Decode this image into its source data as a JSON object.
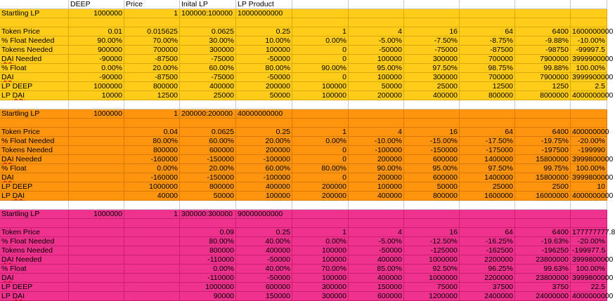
{
  "header": [
    "",
    "DEEP",
    "Price",
    "Inital LP",
    "LP Product",
    "",
    "",
    "",
    "",
    "",
    ""
  ],
  "sections": [
    {
      "color": "#ffcc1a",
      "startling": {
        "label": "Startling LP",
        "deep": "1000000",
        "price": "1",
        "initial_lp": "100000:100000",
        "lp_product": "10000000000"
      },
      "rows": [
        {
          "label": "Token Price",
          "values": [
            "0.01",
            "0.015625",
            "0.0625",
            "0.25",
            "1",
            "4",
            "16",
            "64",
            "6400",
            "1600000000"
          ]
        },
        {
          "label": "% Float Needed",
          "values": [
            "90.00%",
            "70.00%",
            "30.00%",
            "10.00%",
            "0.00%",
            "-5.00%",
            "-7.50%",
            "-8.75%",
            "-9.88%",
            "-10.00%"
          ]
        },
        {
          "label": "Tokens Needed",
          "values": [
            "900000",
            "700000",
            "300000",
            "100000",
            "0",
            "-50000",
            "-75000",
            "-87500",
            "-98750",
            "-99997.5"
          ]
        },
        {
          "label": "DAI Needed",
          "values": [
            "-90000",
            "-87500",
            "-75000",
            "-50000",
            "0",
            "100000",
            "300000",
            "700000",
            "7900000",
            "3999900000"
          ]
        },
        {
          "label": "% Float",
          "values": [
            "0.00%",
            "20.00%",
            "60.00%",
            "80.00%",
            "90.00%",
            "95.00%",
            "97.50%",
            "98.75%",
            "99.88%",
            "100.00%"
          ]
        },
        {
          "label": "DAI",
          "values": [
            "-90000",
            "-87500",
            "-75000",
            "-50000",
            "0",
            "100000",
            "300000",
            "700000",
            "7900000",
            "3999900000"
          ]
        },
        {
          "label": "LP DEEP",
          "values": [
            "1000000",
            "800000",
            "400000",
            "200000",
            "100000",
            "50000",
            "25000",
            "12500",
            "1250",
            "2.5"
          ]
        },
        {
          "label": "LP DAI",
          "values": [
            "10000",
            "12500",
            "25000",
            "50000",
            "100000",
            "200000",
            "400000",
            "800000",
            "8000000",
            "4000000000"
          ]
        }
      ]
    },
    {
      "color": "#ff950e",
      "startling": {
        "label": "Startling LP",
        "deep": "1000000",
        "price": "1",
        "initial_lp": "200000:200000",
        "lp_product": "40000000000"
      },
      "rows": [
        {
          "label": "Token Price",
          "values": [
            "",
            "0.04",
            "0.0625",
            "0.25",
            "1",
            "4",
            "16",
            "64",
            "6400",
            "400000000"
          ]
        },
        {
          "label": "% Float Needed",
          "values": [
            "",
            "80.00%",
            "60.00%",
            "20.00%",
            "0.00%",
            "-10.00%",
            "-15.00%",
            "-17.50%",
            "-19.75%",
            "-20.00%"
          ]
        },
        {
          "label": "Tokens Needed",
          "values": [
            "",
            "800000",
            "600000",
            "200000",
            "0",
            "-100000",
            "-150000",
            "-175000",
            "-197500",
            "-199990"
          ]
        },
        {
          "label": "DAI Needed",
          "values": [
            "",
            "-160000",
            "-150000",
            "-100000",
            "0",
            "200000",
            "600000",
            "1400000",
            "15800000",
            "3999800000"
          ]
        },
        {
          "label": "% Float",
          "values": [
            "",
            "0.00%",
            "20.00%",
            "60.00%",
            "80.00%",
            "90.00%",
            "95.00%",
            "97.50%",
            "99.75%",
            "100.00%"
          ]
        },
        {
          "label": "DAI",
          "values": [
            "",
            "-160000",
            "-150000",
            "-100000",
            "0",
            "200000",
            "600000",
            "1400000",
            "15800000",
            "3999800000"
          ]
        },
        {
          "label": "LP DEEP",
          "values": [
            "",
            "1000000",
            "800000",
            "400000",
            "200000",
            "100000",
            "50000",
            "25000",
            "2500",
            "10"
          ]
        },
        {
          "label": "LP DAI",
          "values": [
            "",
            "40000",
            "50000",
            "100000",
            "200000",
            "400000",
            "800000",
            "1600000",
            "16000000",
            "4000000000"
          ]
        }
      ]
    },
    {
      "color": "#f0328f",
      "startling": {
        "label": "Startling LP",
        "deep": "1000000",
        "price": "1",
        "initial_lp": "300000:300000",
        "lp_product": "90000000000"
      },
      "rows": [
        {
          "label": "Token Price",
          "values": [
            "",
            "",
            "0.09",
            "0.25",
            "1",
            "4",
            "16",
            "64",
            "6400",
            "177777777.8"
          ]
        },
        {
          "label": "% Float Needed",
          "values": [
            "",
            "",
            "80.00%",
            "40.00%",
            "0.00%",
            "-5.00%",
            "-12.50%",
            "-16.25%",
            "-19.63%",
            "-20.00%"
          ]
        },
        {
          "label": "Tokens Needed",
          "values": [
            "",
            "",
            "800000",
            "400000",
            "100000",
            "-50000",
            "-125000",
            "-162500",
            "-196250",
            "-199977.5"
          ]
        },
        {
          "label": "DAI Needed",
          "values": [
            "",
            "",
            "-110000",
            "-50000",
            "100000",
            "400000",
            "1000000",
            "2200000",
            "23800000",
            "3999800000"
          ]
        },
        {
          "label": "% Float",
          "values": [
            "",
            "",
            "0.00%",
            "40.00%",
            "70.00%",
            "85.00%",
            "92.50%",
            "96.25%",
            "99.63%",
            "100.00%"
          ]
        },
        {
          "label": "DAI",
          "values": [
            "",
            "",
            "-110000",
            "-50000",
            "100000",
            "400000",
            "1000000",
            "2200000",
            "23800000",
            "3999800000"
          ]
        },
        {
          "label": "LP DEEP",
          "values": [
            "",
            "",
            "1000000",
            "600000",
            "300000",
            "150000",
            "75000",
            "37500",
            "3750",
            "22.5"
          ]
        },
        {
          "label": "LP DAI",
          "values": [
            "",
            "",
            "90000",
            "150000",
            "300000",
            "600000",
            "1200000",
            "2400000",
            "24000000",
            "4000000000"
          ]
        }
      ]
    }
  ]
}
